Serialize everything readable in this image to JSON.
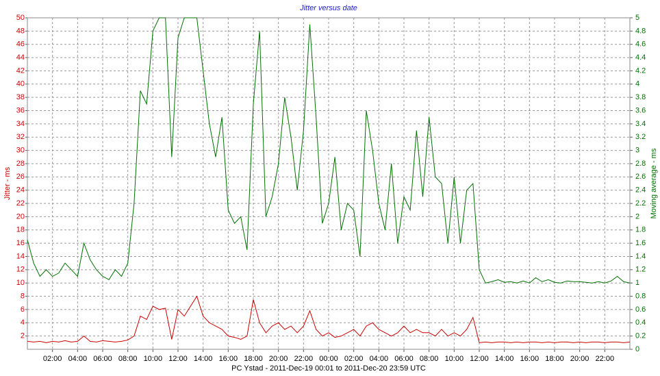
{
  "chart_data": {
    "type": "line",
    "title": "Jitter versus date",
    "xlabel": "PC Ystad  -  2011-Dec-19 00:01  to  2011-Dec-20 23:59 UTC",
    "ylabel": "Jitter - ms",
    "y2label": "Moving average - ms",
    "grid": true,
    "xlim": [
      0,
      48
    ],
    "xticks": [
      {
        "value": 2,
        "label": "02:00"
      },
      {
        "value": 4,
        "label": "04:00"
      },
      {
        "value": 6,
        "label": "06:00"
      },
      {
        "value": 8,
        "label": "08:00"
      },
      {
        "value": 10,
        "label": "10:00"
      },
      {
        "value": 12,
        "label": "12:00"
      },
      {
        "value": 14,
        "label": "14:00"
      },
      {
        "value": 16,
        "label": "16:00"
      },
      {
        "value": 18,
        "label": "18:00"
      },
      {
        "value": 20,
        "label": "20:00"
      },
      {
        "value": 22,
        "label": "22:00"
      },
      {
        "value": 24,
        "label": "00:00"
      },
      {
        "value": 26,
        "label": "02:00"
      },
      {
        "value": 28,
        "label": "04:00"
      },
      {
        "value": 30,
        "label": "06:00"
      },
      {
        "value": 32,
        "label": "08:00"
      },
      {
        "value": 34,
        "label": "10:00"
      },
      {
        "value": 36,
        "label": "12:00"
      },
      {
        "value": 38,
        "label": "14:00"
      },
      {
        "value": 40,
        "label": "16:00"
      },
      {
        "value": 42,
        "label": "18:00"
      },
      {
        "value": 44,
        "label": "20:00"
      },
      {
        "value": 46,
        "label": "22:00"
      }
    ],
    "ylim": [
      0,
      50
    ],
    "yticks": [
      2,
      4,
      6,
      8,
      10,
      12,
      14,
      16,
      18,
      20,
      22,
      24,
      26,
      28,
      30,
      32,
      34,
      36,
      38,
      40,
      42,
      44,
      46,
      48,
      50
    ],
    "y2lim": [
      0,
      5
    ],
    "y2ticks": [
      0,
      0.2,
      0.4,
      0.6,
      0.8,
      1,
      1.2,
      1.4,
      1.6,
      1.8,
      2,
      2.2,
      2.4,
      2.6,
      2.8,
      3,
      3.2,
      3.4,
      3.6,
      3.8,
      4,
      4.2,
      4.4,
      4.6,
      4.8,
      5
    ],
    "x": [
      0,
      0.5,
      1,
      1.5,
      2,
      2.5,
      3,
      3.5,
      4,
      4.5,
      5,
      5.5,
      6,
      6.5,
      7,
      7.5,
      8,
      8.5,
      9,
      9.5,
      10,
      10.5,
      11,
      11.5,
      12,
      12.5,
      13,
      13.5,
      14,
      14.5,
      15,
      15.5,
      16,
      16.5,
      17,
      17.5,
      18,
      18.5,
      19,
      19.5,
      20,
      20.5,
      21,
      21.5,
      22,
      22.5,
      23,
      23.5,
      24,
      24.5,
      25,
      25.5,
      26,
      26.5,
      27,
      27.5,
      28,
      28.5,
      29,
      29.5,
      30,
      30.5,
      31,
      31.5,
      32,
      32.5,
      33,
      33.5,
      34,
      34.5,
      35,
      35.5,
      36,
      36.5,
      37,
      37.5,
      38,
      38.5,
      39,
      39.5,
      40,
      40.5,
      41,
      41.5,
      42,
      42.5,
      43,
      43.5,
      44,
      44.5,
      45,
      45.5,
      46,
      46.5,
      47,
      47.5,
      48
    ],
    "series": [
      {
        "name": "Jitter",
        "color": "#cc0000",
        "values": [
          1.2,
          1.1,
          1.2,
          1.0,
          1.2,
          1.1,
          1.3,
          1.1,
          1.2,
          2.0,
          1.2,
          1.1,
          1.3,
          1.2,
          1.1,
          1.2,
          1.4,
          2.0,
          5.0,
          4.5,
          6.5,
          6.0,
          6.2,
          1.5,
          6.0,
          5.0,
          6.5,
          8.0,
          5.0,
          4.0,
          3.5,
          3.0,
          2.0,
          1.8,
          1.5,
          2.0,
          7.5,
          4.0,
          2.5,
          3.5,
          4.0,
          3.0,
          3.5,
          2.5,
          3.5,
          5.8,
          3.0,
          2.0,
          2.5,
          1.8,
          2.0,
          2.5,
          3.0,
          2.0,
          3.5,
          4.0,
          3.0,
          2.5,
          2.0,
          2.5,
          3.5,
          2.5,
          3.0,
          2.5,
          2.5,
          2.0,
          3.0,
          2.0,
          2.5,
          2.0,
          3.0,
          4.8,
          1.0,
          1.1,
          1.0,
          1.1,
          1.1,
          1.0,
          1.1,
          1.0,
          1.1,
          1.1,
          1.0,
          1.1,
          1.0,
          1.1,
          1.1,
          1.0,
          1.1,
          1.0,
          1.1,
          1.1,
          1.0,
          1.1,
          1.1,
          1.0,
          1.1
        ]
      },
      {
        "name": "Moving average",
        "color": "#007000",
        "axis": "y2",
        "values": [
          1.65,
          1.3,
          1.1,
          1.2,
          1.1,
          1.15,
          1.3,
          1.2,
          1.1,
          1.6,
          1.35,
          1.2,
          1.1,
          1.05,
          1.2,
          1.1,
          1.3,
          2.2,
          3.9,
          3.7,
          4.8,
          5.0,
          5.0,
          2.9,
          4.7,
          5.0,
          5.0,
          5.0,
          4.2,
          3.4,
          2.9,
          3.5,
          2.1,
          1.9,
          2.0,
          1.5,
          3.7,
          4.8,
          2.0,
          2.3,
          2.8,
          3.8,
          3.2,
          2.4,
          3.3,
          4.9,
          3.5,
          1.9,
          2.2,
          2.9,
          1.8,
          2.2,
          2.1,
          1.4,
          3.6,
          3.0,
          2.2,
          1.8,
          2.8,
          1.6,
          2.3,
          2.1,
          3.3,
          2.3,
          3.5,
          2.6,
          2.5,
          1.6,
          2.6,
          1.6,
          2.4,
          2.5,
          1.2,
          1.0,
          1.02,
          1.05,
          1.01,
          1.02,
          1.0,
          1.03,
          1.0,
          1.08,
          1.02,
          1.05,
          1.01,
          1.0,
          1.03,
          1.02,
          1.02,
          1.01,
          1.0,
          1.02,
          1.0,
          1.03,
          1.1,
          1.02,
          1.0
        ]
      }
    ]
  }
}
